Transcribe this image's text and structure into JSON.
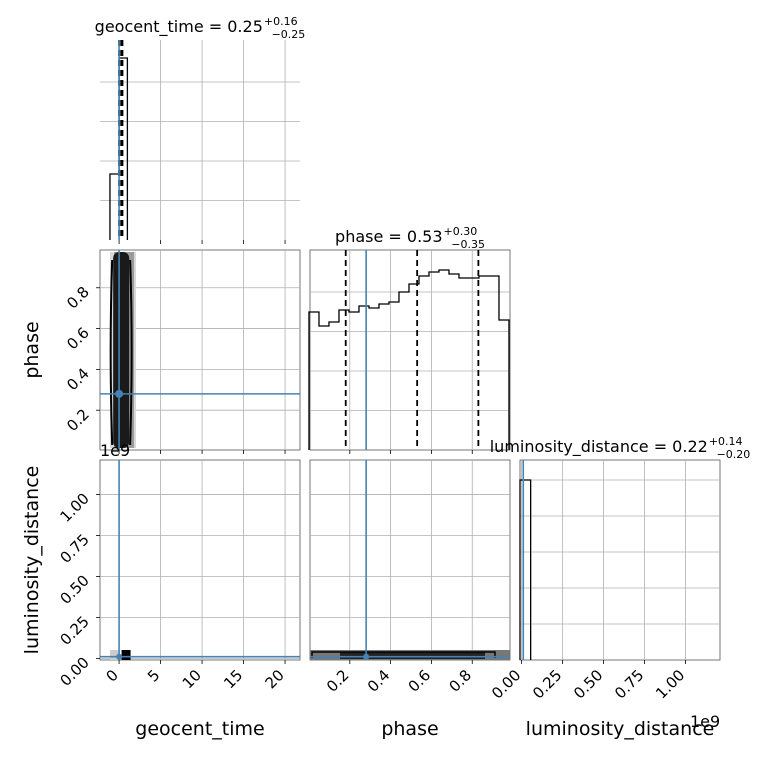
{
  "chart_data": {
    "type": "corner",
    "parameters": [
      "geocent_time",
      "phase",
      "luminosity_distance"
    ],
    "axis_ranges": {
      "geocent_time": [
        -2.3,
        21.8
      ],
      "phase": [
        0.005,
        0.985
      ],
      "luminosity_distance": [
        -0.01,
        1.21
      ]
    },
    "truth_color": "#4682b4",
    "line_color": "#000000",
    "grid": true,
    "titles": {
      "geocent_time": {
        "label": "geocent_time = 0.25",
        "upper": "+0.16",
        "lower": "−0.25"
      },
      "phase": {
        "label": "phase = 0.53",
        "upper": "+0.30",
        "lower": "−0.35"
      },
      "luminosity_distance": {
        "label": "luminosity_distance = 0.22",
        "upper": "+0.14",
        "lower": "−0.20"
      }
    },
    "truths": {
      "geocent_time": 0.0,
      "phase": 0.28,
      "luminosity_distance": 0.01
    },
    "quantiles": {
      "geocent_time": [
        0.0,
        0.25,
        0.41
      ],
      "phase": [
        0.18,
        0.53,
        0.83
      ]
    },
    "hist_geocent_time": {
      "edges": [
        -1.1,
        0.0,
        1.0
      ],
      "counts": [
        0.33,
        0.91
      ]
    },
    "hist_phase": {
      "edges": [
        0.0,
        0.049,
        0.098,
        0.147,
        0.196,
        0.245,
        0.294,
        0.343,
        0.392,
        0.441,
        0.49,
        0.539,
        0.588,
        0.637,
        0.686,
        0.735,
        0.784,
        0.833,
        0.882,
        0.931,
        0.98
      ],
      "counts": [
        0.69,
        0.62,
        0.64,
        0.7,
        0.69,
        0.72,
        0.71,
        0.73,
        0.74,
        0.79,
        0.83,
        0.87,
        0.89,
        0.9,
        0.88,
        0.86,
        0.86,
        0.87,
        0.87,
        0.65
      ]
    },
    "hist_luminosity_distance": {
      "edges": [
        -0.01,
        0.055
      ],
      "counts": [
        0.9
      ]
    },
    "ticks": {
      "geocent_time": [
        "0",
        "5",
        "10",
        "15",
        "20"
      ],
      "geocent_time_values": [
        0,
        5,
        10,
        15,
        20
      ],
      "phase": [
        "0.2",
        "0.4",
        "0.6",
        "0.8"
      ],
      "phase_values": [
        0.2,
        0.4,
        0.6,
        0.8
      ],
      "luminosity_distance": [
        "0.00",
        "0.25",
        "0.50",
        "0.75",
        "1.00"
      ],
      "luminosity_distance_values": [
        0.0,
        0.25,
        0.5,
        0.75,
        1.0
      ]
    },
    "offset_labels": {
      "left_column": "1e9",
      "bottom_right": "1e9"
    },
    "axis_labels": {
      "x": [
        "geocent_time",
        "phase",
        "luminosity_distance"
      ],
      "y": [
        "phase",
        "luminosity_distance"
      ]
    }
  }
}
